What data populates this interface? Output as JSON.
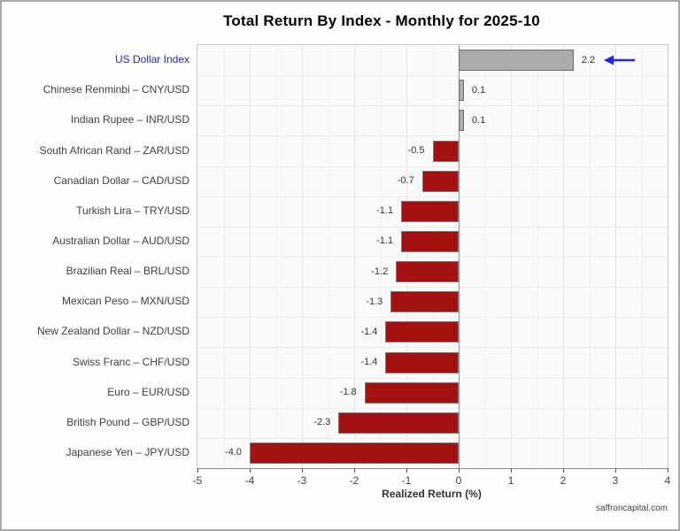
{
  "page": {
    "footer": "saffroncapital.com"
  },
  "chart_data": {
    "type": "bar",
    "orientation": "horizontal",
    "title": "Total Return By Index - Monthly for 2025-10",
    "xlabel": "Realized Return (%)",
    "xlim": [
      -5,
      4
    ],
    "xticks": [
      -5,
      -4,
      -3,
      -2,
      -1,
      0,
      1,
      2,
      3,
      4
    ],
    "grid": "major and minor vertical, horizontal row separators",
    "legend": "none",
    "categories": [
      "US Dollar Index",
      "Chinese Renminbi – CNY/USD",
      "Indian Rupee – INR/USD",
      "South African Rand – ZAR/USD",
      "Canadian Dollar – CAD/USD",
      "Turkish Lira – TRY/USD",
      "Australian Dollar – AUD/USD",
      "Brazilian Real – BRL/USD",
      "Mexican Peso – MXN/USD",
      "New Zealand Dollar – NZD/USD",
      "Swiss Franc – CHF/USD",
      "Euro – EUR/USD",
      "British Pound – GBP/USD",
      "Japanese Yen – JPY/USD"
    ],
    "values": [
      2.2,
      0.1,
      0.1,
      -0.5,
      -0.7,
      -1.1,
      -1.1,
      -1.2,
      -1.3,
      -1.4,
      -1.4,
      -1.8,
      -2.3,
      -4.0
    ],
    "value_labels": [
      "2.2",
      "0.1",
      "0.1",
      "-0.5",
      "-0.7",
      "-1.1",
      "-1.1",
      "-1.2",
      "-1.3",
      "-1.4",
      "-1.4",
      "-1.8",
      "-2.3",
      "-4.0"
    ],
    "colors": {
      "positive_bar": "#ababab",
      "negative_bar": "#a31111",
      "highlight_label": "#2424e6",
      "arrow": "#2424e6"
    },
    "highlight": {
      "category": "US Dollar Index",
      "index": 0,
      "marker": "blue left-arrow after value"
    }
  }
}
